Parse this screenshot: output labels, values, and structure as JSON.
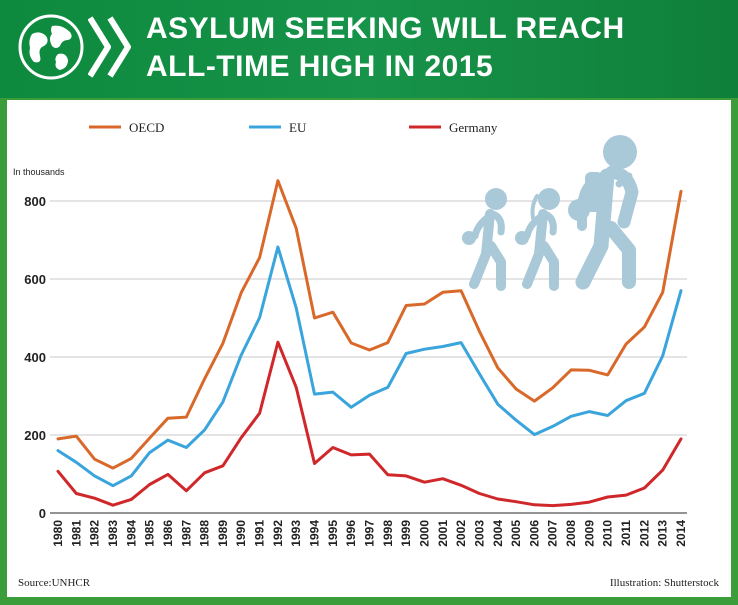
{
  "header": {
    "title_line1": "ASYLUM SEEKING WILL REACH",
    "title_line2": "ALL-TIME HIGH IN 2015",
    "logo_icon": "globe-icon",
    "chevrons_icon": "double-chevron-icon"
  },
  "footer": {
    "source": "Source:UNHCR",
    "illustration": "Illustration: Shutterstock"
  },
  "chart_data": {
    "type": "line",
    "title": "ASYLUM SEEKING WILL REACH ALL-TIME HIGH IN 2015",
    "unit_label": "In thousands",
    "xlabel": "",
    "ylabel": "",
    "ylim": [
      0,
      900
    ],
    "yticks": [
      0,
      200,
      400,
      600,
      800
    ],
    "grid": true,
    "legend_position": "top-left",
    "x": [
      1980,
      1981,
      1982,
      1983,
      1984,
      1985,
      1986,
      1987,
      1988,
      1989,
      1990,
      1991,
      1992,
      1993,
      1994,
      1995,
      1996,
      1997,
      1998,
      1999,
      2000,
      2001,
      2002,
      2003,
      2004,
      2005,
      2006,
      2007,
      2008,
      2009,
      2010,
      2011,
      2012,
      2013,
      2014
    ],
    "series": [
      {
        "name": "OECD",
        "color": "#d9692a",
        "values": [
          190,
          197,
          138,
          115,
          140,
          192,
          243,
          246,
          344,
          435,
          565,
          655,
          852,
          730,
          500,
          515,
          436,
          418,
          437,
          532,
          536,
          566,
          570,
          466,
          372,
          318,
          287,
          321,
          367,
          366,
          354,
          433,
          477,
          566,
          825
        ]
      },
      {
        "name": "EU",
        "color": "#3aa4dc",
        "values": [
          160,
          130,
          95,
          70,
          95,
          155,
          187,
          168,
          213,
          285,
          405,
          501,
          682,
          526,
          305,
          310,
          271,
          302,
          322,
          409,
          420,
          427,
          437,
          357,
          279,
          238,
          201,
          222,
          248,
          260,
          250,
          288,
          307,
          403,
          570
        ]
      },
      {
        "name": "Germany",
        "color": "#d0282a",
        "values": [
          107,
          50,
          38,
          20,
          35,
          73,
          99,
          57,
          103,
          121,
          193,
          256,
          438,
          322,
          127,
          168,
          149,
          151,
          98,
          95,
          79,
          88,
          71,
          50,
          36,
          29,
          21,
          19,
          22,
          28,
          41,
          46,
          64,
          110,
          190
        ]
      }
    ]
  },
  "decor": {
    "illustration_icon": "walking-family-icon",
    "illustration_color": "#a9c8d8"
  }
}
